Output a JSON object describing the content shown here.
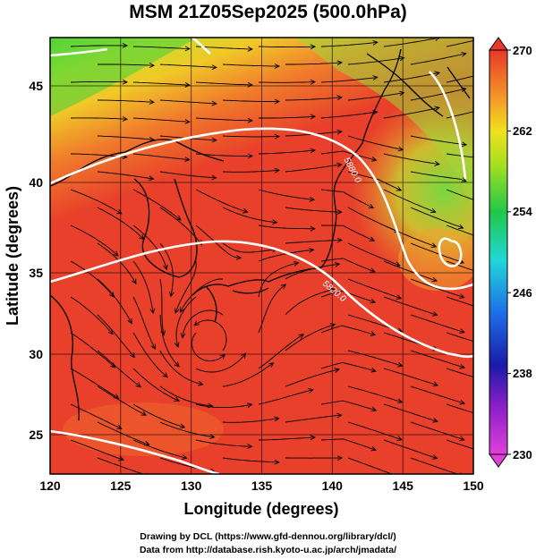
{
  "title": "MSM 21Z05Sep2025 (500.0hPa)",
  "xlabel": "Longitude (degrees)",
  "ylabel": "Latitude  (degrees)",
  "x_ticks": [
    "120",
    "125",
    "130",
    "135",
    "140",
    "145",
    "150"
  ],
  "y_ticks": [
    "25",
    "30",
    "35",
    "40",
    "45"
  ],
  "colorbar": {
    "ticks": [
      "270",
      "262",
      "254",
      "246",
      "238",
      "230"
    ],
    "min": 230,
    "max": 270
  },
  "contour_labels": [
    "5880.0",
    "5820.0"
  ],
  "credits": {
    "line1": "Drawing by DCL (https://www.gfd-dennou.org/library/dcl/)",
    "line2": "Data from http://database.rish.kyoto-u.ac.jp/arch/jmadata/"
  },
  "colors": {
    "warm": "#e83b2a",
    "mid": "#f26a2c",
    "yellow": "#e8e02a",
    "green": "#3fd63a",
    "contour": "#ffffff"
  }
}
